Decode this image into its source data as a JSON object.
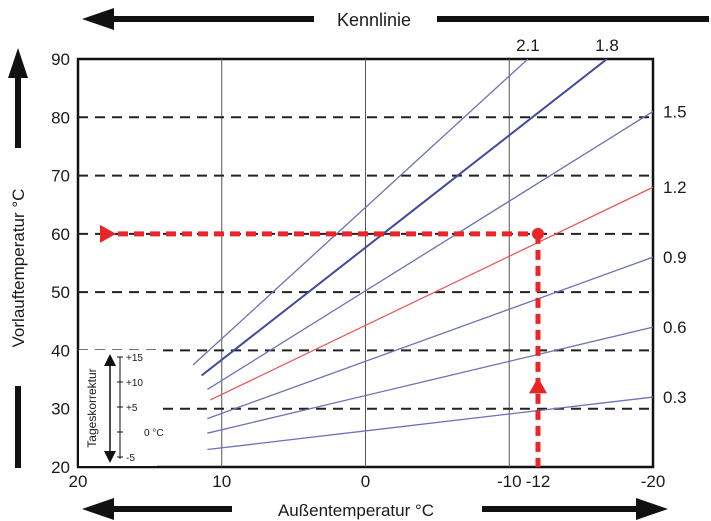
{
  "chart_data": {
    "type": "line",
    "title": "Kennlinie",
    "xlabel": "Außentemperatur °C",
    "ylabel": "Vorlauftemperatur °C",
    "xlim": [
      20,
      -20
    ],
    "ylim": [
      20,
      90
    ],
    "x_ticks": [
      {
        "value": 20,
        "label": "20"
      },
      {
        "value": 10,
        "label": "10"
      },
      {
        "value": 0,
        "label": "0"
      },
      {
        "value": -10,
        "label": "-10"
      },
      {
        "value": -12,
        "label": "-12"
      },
      {
        "value": -20,
        "label": "-20"
      }
    ],
    "y_ticks": [
      20,
      30,
      40,
      50,
      60,
      70,
      80,
      90
    ],
    "x_gridlines": [
      10,
      0,
      -10
    ],
    "dashed_gridlines": [
      30,
      40,
      50,
      60,
      70,
      80
    ],
    "series": [
      {
        "name": "0.3",
        "color": "#6b72b5",
        "points": [
          [
            11,
            23
          ],
          [
            -20,
            32
          ]
        ],
        "label_at_right": true
      },
      {
        "name": "0.6",
        "color": "#6b72b5",
        "points": [
          [
            11,
            25.8
          ],
          [
            -20,
            44
          ]
        ],
        "label_at_right": true
      },
      {
        "name": "0.9",
        "color": "#6b72b5",
        "points": [
          [
            11,
            28.3
          ],
          [
            -20,
            56
          ]
        ],
        "label_at_right": true
      },
      {
        "name": "1.2",
        "color": "#e8585c",
        "points": [
          [
            10.8,
            31.5
          ],
          [
            -20,
            68
          ]
        ],
        "label_at_right": true
      },
      {
        "name": "1.5",
        "color": "#6b72b5",
        "points": [
          [
            11,
            33.3
          ],
          [
            -20,
            81
          ]
        ],
        "label_at_right": true
      },
      {
        "name": "1.8",
        "color": "#3f4a9a",
        "points": [
          [
            11.4,
            35.7
          ],
          [
            -16.8,
            90
          ]
        ],
        "label_at_top": true
      },
      {
        "name": "2.1",
        "color": "#6b72b5",
        "points": [
          [
            12,
            37.5
          ],
          [
            -11.3,
            90
          ]
        ],
        "label_at_top": true
      }
    ],
    "example": {
      "outside_temp": -12,
      "flow_temp": 60,
      "color": "#e8262a"
    },
    "inset": {
      "label": "Tageskorrektur",
      "ticks": [
        "+15",
        "+10",
        "+5",
        "0 °C",
        "-5"
      ]
    }
  }
}
